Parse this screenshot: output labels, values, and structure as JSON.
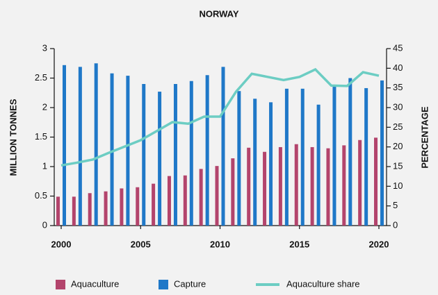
{
  "chart_data": {
    "type": "bar-line",
    "title": "NORWAY",
    "ylabel": "MILLION TONNES",
    "y2label": "PERCENTAGE",
    "x": [
      2000,
      2001,
      2002,
      2003,
      2004,
      2005,
      2006,
      2007,
      2008,
      2009,
      2010,
      2011,
      2012,
      2013,
      2014,
      2015,
      2016,
      2017,
      2018,
      2019,
      2020
    ],
    "xlim": [
      2000,
      2020
    ],
    "xticks": [
      2000,
      2005,
      2010,
      2015,
      2020
    ],
    "ylim": [
      0,
      3
    ],
    "yticks": [
      0,
      0.5,
      1,
      1.5,
      2,
      2.5,
      3
    ],
    "y2lim": [
      0,
      45
    ],
    "y2ticks": [
      0,
      5,
      10,
      15,
      20,
      25,
      30,
      35,
      40,
      45
    ],
    "legend": "bottom",
    "series": [
      {
        "name": "Aquaculture",
        "type": "bar",
        "color": "#b3446c",
        "values": [
          0.49,
          0.49,
          0.55,
          0.58,
          0.63,
          0.65,
          0.71,
          0.84,
          0.85,
          0.96,
          1.01,
          1.14,
          1.32,
          1.25,
          1.33,
          1.38,
          1.33,
          1.31,
          1.36,
          1.45,
          1.49
        ]
      },
      {
        "name": "Capture",
        "type": "bar",
        "color": "#1f78c8",
        "values": [
          2.72,
          2.69,
          2.75,
          2.58,
          2.54,
          2.4,
          2.27,
          2.4,
          2.45,
          2.55,
          2.69,
          2.28,
          2.15,
          2.09,
          2.32,
          2.32,
          2.05,
          2.38,
          2.5,
          2.33,
          2.46
        ]
      },
      {
        "name": "Aquaculture share",
        "type": "line",
        "axis": "y2",
        "color": "#6ccdc3",
        "values": [
          15.3,
          16,
          16.8,
          18.5,
          20.1,
          21.7,
          24,
          26.3,
          25.9,
          27.7,
          27.7,
          34,
          38.6,
          37.8,
          37,
          37.8,
          39.7,
          35.6,
          35.5,
          39,
          38.1
        ]
      }
    ]
  }
}
